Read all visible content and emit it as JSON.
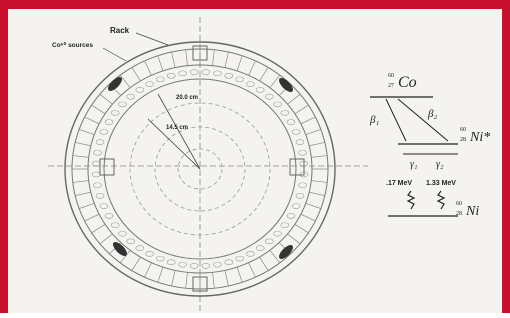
{
  "diagram": {
    "labels": {
      "rack": "Rack",
      "sources": "Co⁶⁰ sources",
      "outer_radius": "20.0 cm",
      "inner_radius": "14.5 cm"
    },
    "decay": {
      "parent": {
        "mass": "60",
        "atomic": "27",
        "symbol": "Co"
      },
      "beta1": "β₁",
      "beta2": "β₂",
      "excited": {
        "mass": "60",
        "atomic": "28",
        "symbol": "Ni*"
      },
      "gamma1": "γ₁",
      "gamma2": "γ₂",
      "energy1": ".17 MeV",
      "energy2": "1.33 MeV",
      "ground": {
        "mass": "60",
        "atomic": "28",
        "symbol": "Ni"
      }
    }
  }
}
